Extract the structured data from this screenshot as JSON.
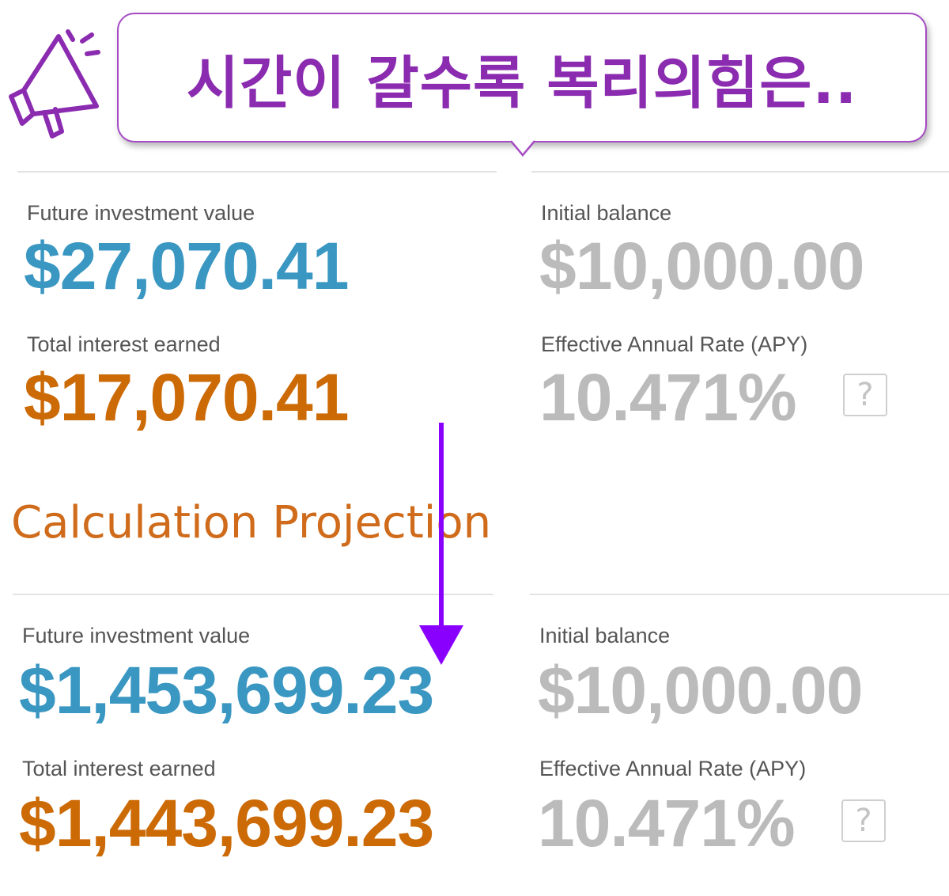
{
  "banner": {
    "icon": "megaphone-icon",
    "text": "시간이 갈수록 복리의힘은..",
    "accent_color": "#8a2bb0"
  },
  "top_result": {
    "future_value_label": "Future investment value",
    "future_value": "$27,070.41",
    "total_interest_label": "Total interest earned",
    "total_interest": "$17,070.41",
    "initial_balance_label": "Initial balance",
    "initial_balance": "$10,000.00",
    "apy_label": "Effective Annual Rate (APY)",
    "apy": "10.471%",
    "help_label": "?"
  },
  "section_title": "Calculation Projection",
  "bottom_result": {
    "future_value_label": "Future investment value",
    "future_value": "$1,453,699.23",
    "total_interest_label": "Total interest earned",
    "total_interest": "$1,443,699.23",
    "initial_balance_label": "Initial balance",
    "initial_balance": "$10,000.00",
    "apy_label": "Effective Annual Rate (APY)",
    "apy": "10.471%",
    "help_label": "?"
  },
  "colors": {
    "future_value": "#3a97c2",
    "total_interest": "#cc6a06",
    "muted_value": "#bbbbbb",
    "arrow": "#8a00ff"
  }
}
